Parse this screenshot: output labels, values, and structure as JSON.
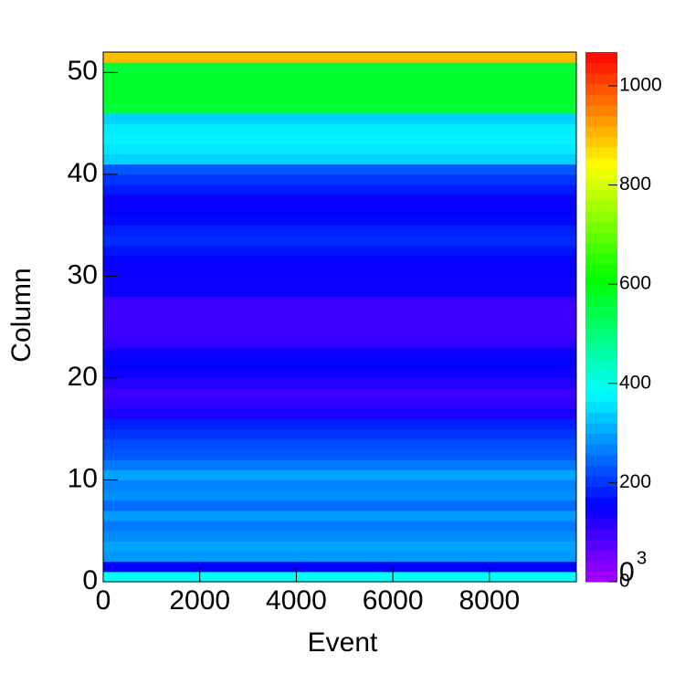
{
  "chart_data": {
    "type": "heatmap",
    "xlabel": "Event",
    "ylabel": "Column",
    "xlim": [
      0,
      9800
    ],
    "ylim": [
      0,
      52
    ],
    "zlim": [
      0,
      1068
    ],
    "xticks": [
      0,
      2000,
      4000,
      6000,
      8000
    ],
    "yticks": [
      0,
      10,
      20,
      30,
      40,
      50
    ],
    "zticks": [
      0,
      200,
      400,
      600,
      800,
      1000
    ],
    "z_exponent": {
      "base": "0",
      "power": "3"
    },
    "colormap": "rainbow",
    "rows": [
      0,
      1,
      2,
      3,
      4,
      5,
      6,
      7,
      8,
      9,
      10,
      11,
      12,
      13,
      14,
      15,
      16,
      17,
      18,
      19,
      20,
      21,
      22,
      23,
      24,
      25,
      26,
      27,
      28,
      29,
      30,
      31,
      32,
      33,
      34,
      35,
      36,
      37,
      38,
      39,
      40,
      41,
      42,
      43,
      44,
      45,
      46,
      47,
      48,
      49,
      50,
      51
    ],
    "values": [
      390,
      150,
      290,
      300,
      280,
      260,
      290,
      250,
      280,
      270,
      300,
      260,
      230,
      220,
      200,
      180,
      130,
      110,
      100,
      120,
      140,
      150,
      140,
      110,
      100,
      95,
      95,
      100,
      140,
      140,
      145,
      150,
      170,
      190,
      180,
      160,
      150,
      145,
      175,
      200,
      230,
      340,
      360,
      370,
      365,
      340,
      560,
      570,
      575,
      570,
      560,
      900
    ]
  }
}
